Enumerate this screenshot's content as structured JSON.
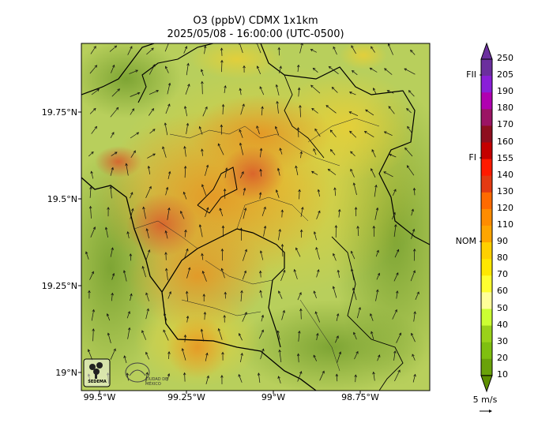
{
  "title": {
    "line1": "O3 (ppbV) CDMX 1x1km",
    "line2": "2025/05/08 - 16:00:00 (UTC-0500)"
  },
  "map": {
    "lat_ticks": [
      "19.75°N",
      "19.5°N",
      "19.25°N",
      "19°N"
    ],
    "lon_ticks": [
      "99.5°W",
      "99.25°W",
      "99°W",
      "98.75°W"
    ]
  },
  "colorbar": {
    "levels": [
      "250",
      "205",
      "190",
      "180",
      "170",
      "160",
      "155",
      "140",
      "130",
      "120",
      "110",
      "90",
      "80",
      "70",
      "60",
      "50",
      "40",
      "30",
      "20",
      "10"
    ],
    "colors": [
      "#6b2f9e",
      "#8a1fd8",
      "#b000b0",
      "#9b1464",
      "#8e0f1f",
      "#c40000",
      "#ff1a00",
      "#e33a12",
      "#ff6a00",
      "#ff8c00",
      "#ffa500",
      "#ffd000",
      "#ffe800",
      "#ffff30",
      "#ffff99",
      "#ccff33",
      "#9ad21a",
      "#7fbf10",
      "#6aa20a",
      "#5d8f00"
    ],
    "level_marks": [
      {
        "label": "FII",
        "value": "205"
      },
      {
        "label": "FI",
        "value": "155"
      },
      {
        "label": "NOM",
        "value": "90"
      }
    ]
  },
  "wind_reference": "5 m/s",
  "logos": [
    "SEDEMA",
    "CIUDAD DE MÉXICO"
  ]
}
